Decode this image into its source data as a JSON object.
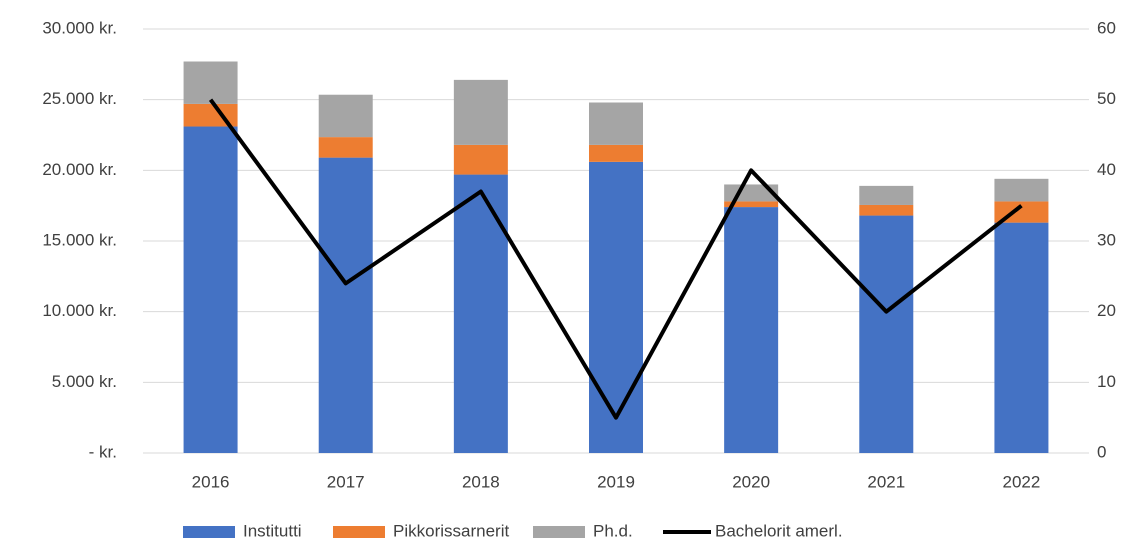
{
  "chart_data": {
    "type": "bar",
    "stacked": true,
    "categories": [
      "2016",
      "2017",
      "2018",
      "2019",
      "2020",
      "2021",
      "2022"
    ],
    "series": [
      {
        "name": "Institutti",
        "color": "#4472c4",
        "values": [
          23100,
          20900,
          19700,
          20600,
          17400,
          16800,
          16300
        ]
      },
      {
        "name": "Pikkorissarnerit",
        "color": "#ed7d31",
        "values": [
          1600,
          1450,
          2100,
          1200,
          400,
          750,
          1500
        ]
      },
      {
        "name": "Ph.d.",
        "color": "#a5a5a5",
        "values": [
          3000,
          3000,
          4600,
          3000,
          1200,
          1350,
          1600
        ]
      },
      {
        "name": "Bachelorit amerl.",
        "color": "#000000",
        "type": "line",
        "axis": "y2",
        "values": [
          50,
          24,
          37,
          5,
          40,
          20,
          35
        ]
      }
    ],
    "ylim": [
      0,
      30000
    ],
    "yticks": [
      {
        "value": 0,
        "label": "-  kr."
      },
      {
        "value": 5000,
        "label": "5.000 kr."
      },
      {
        "value": 10000,
        "label": "10.000 kr."
      },
      {
        "value": 15000,
        "label": "15.000 kr."
      },
      {
        "value": 20000,
        "label": "20.000 kr."
      },
      {
        "value": 25000,
        "label": "25.000 kr."
      },
      {
        "value": 30000,
        "label": "30.000 kr."
      }
    ],
    "y2lim": [
      0,
      60
    ],
    "y2ticks": [
      0,
      10,
      20,
      30,
      40,
      50,
      60
    ],
    "grid": true,
    "legend": "bottom"
  }
}
